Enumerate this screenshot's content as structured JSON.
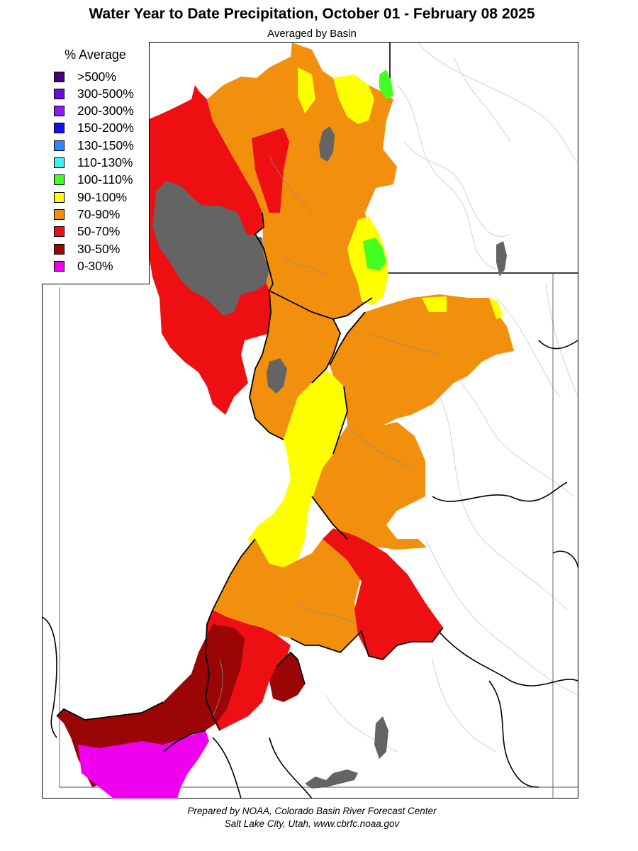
{
  "title": "Water Year to Date Precipitation, October 01  - February 08 2025",
  "subtitle": "Averaged by Basin",
  "legend": {
    "title": "% Average",
    "items": [
      {
        "label": ">500%",
        "color": "#4b0082"
      },
      {
        "label": "300-500%",
        "color": "#6a0ddf"
      },
      {
        "label": "200-300%",
        "color": "#8a1cff"
      },
      {
        "label": "150-200%",
        "color": "#1010ff"
      },
      {
        "label": "130-150%",
        "color": "#2a88ff"
      },
      {
        "label": "110-130%",
        "color": "#40f0f0"
      },
      {
        "label": "100-110%",
        "color": "#44ff22"
      },
      {
        "label": "90-100%",
        "color": "#ffff00"
      },
      {
        "label": "70-90%",
        "color": "#f2900e"
      },
      {
        "label": "50-70%",
        "color": "#ee0f12"
      },
      {
        "label": "30-50%",
        "color": "#9a0606"
      },
      {
        "label": "0-30%",
        "color": "#ee00ee"
      }
    ]
  },
  "map": {
    "lake_color": "#646464",
    "state_border_color": "#000000"
  },
  "footer": {
    "line1": "Prepared by NOAA, Colorado Basin River Forecast Center",
    "line2": "Salt Lake City, Utah, www.cbrfc.noaa.gov"
  }
}
